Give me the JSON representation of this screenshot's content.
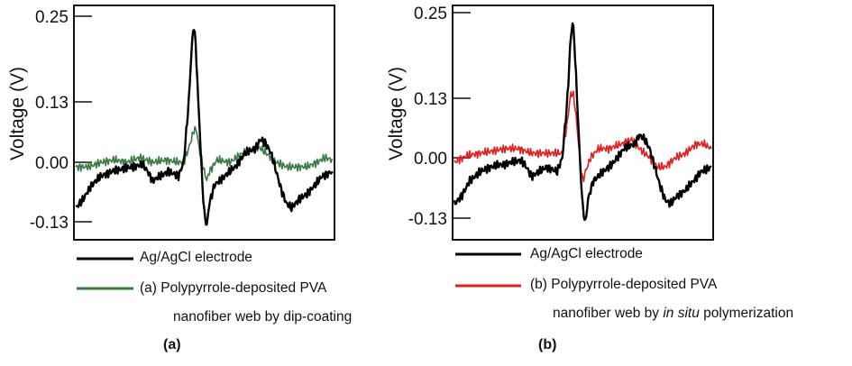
{
  "chart_data": [
    {
      "type": "line",
      "panel_label": "(a)",
      "ylabel": "Voltage (V)",
      "yticks": [
        0.25,
        0.13,
        0.0,
        -0.13
      ],
      "ytick_labels": [
        "0.25",
        "0.13",
        "0.00",
        "-0.13"
      ],
      "xlabel": "",
      "grid": false,
      "legend_position": "bottom",
      "series": [
        {
          "name": "Ag/AgCl electrode",
          "color": "#000000",
          "x": [
            0,
            3,
            6,
            10,
            14,
            18,
            22,
            26,
            28,
            30,
            33,
            36,
            40,
            42,
            44,
            45,
            46,
            47,
            48,
            49,
            50,
            51,
            52,
            54,
            58,
            62,
            66,
            70,
            72,
            74,
            76,
            78,
            80,
            82,
            84,
            87,
            90,
            93,
            96,
            100
          ],
          "y": [
            -0.1,
            -0.08,
            -0.05,
            -0.03,
            -0.02,
            -0.015,
            -0.01,
            -0.005,
            -0.02,
            -0.04,
            -0.03,
            -0.02,
            -0.03,
            0.0,
            0.13,
            0.2,
            0.24,
            0.19,
            0.1,
            -0.02,
            -0.11,
            -0.14,
            -0.09,
            -0.05,
            -0.03,
            -0.01,
            0.02,
            0.03,
            0.05,
            0.04,
            0.02,
            -0.02,
            -0.06,
            -0.09,
            -0.1,
            -0.08,
            -0.07,
            -0.05,
            -0.03,
            -0.02
          ]
        },
        {
          "name": "(a) Polypyrrole-deposited PVA nanofiber web by dip-coating",
          "color": "#3a7a45",
          "x": [
            0,
            5,
            10,
            15,
            20,
            25,
            30,
            35,
            40,
            42,
            44,
            46,
            47,
            48,
            50,
            51,
            52,
            55,
            60,
            65,
            70,
            72,
            74,
            78,
            82,
            86,
            90,
            94,
            97,
            100
          ],
          "y": [
            -0.01,
            -0.01,
            0.0,
            0.005,
            0.0,
            0.01,
            0.0,
            0.005,
            0.0,
            0.0,
            0.03,
            0.07,
            0.07,
            0.03,
            -0.02,
            -0.04,
            -0.02,
            0.005,
            0.0,
            0.02,
            0.03,
            0.03,
            0.02,
            0.0,
            -0.01,
            -0.01,
            -0.01,
            0.0,
            0.01,
            0.005
          ]
        }
      ]
    },
    {
      "type": "line",
      "panel_label": "(b)",
      "ylabel": "Voltage (V)",
      "yticks": [
        0.25,
        0.13,
        0.0,
        -0.13
      ],
      "ytick_labels": [
        "0.25",
        "0.13",
        "0.00",
        "-0.13"
      ],
      "xlabel": "",
      "grid": false,
      "legend_position": "bottom",
      "series": [
        {
          "name": "Ag/AgCl electrode",
          "color": "#000000",
          "x": [
            0,
            3,
            6,
            10,
            14,
            18,
            22,
            26,
            28,
            30,
            33,
            36,
            40,
            42,
            44,
            45,
            46,
            47,
            48,
            49,
            50,
            51,
            52,
            54,
            58,
            62,
            66,
            70,
            72,
            74,
            76,
            78,
            80,
            82,
            84,
            87,
            90,
            93,
            96,
            100
          ],
          "y": [
            -0.1,
            -0.08,
            -0.05,
            -0.03,
            -0.02,
            -0.015,
            -0.01,
            -0.005,
            -0.02,
            -0.04,
            -0.03,
            -0.02,
            -0.03,
            0.0,
            0.13,
            0.2,
            0.24,
            0.19,
            0.1,
            -0.02,
            -0.11,
            -0.14,
            -0.09,
            -0.05,
            -0.03,
            -0.01,
            0.02,
            0.03,
            0.05,
            0.04,
            0.02,
            -0.02,
            -0.06,
            -0.09,
            -0.1,
            -0.08,
            -0.07,
            -0.05,
            -0.03,
            -0.02
          ]
        },
        {
          "name": "(b) Polypyrrole-deposited PVA nanofiber web by in situ polymerization",
          "color": "#e02020",
          "x": [
            0,
            5,
            10,
            15,
            20,
            25,
            30,
            35,
            40,
            42,
            44,
            45,
            46,
            47,
            48,
            49,
            50,
            51,
            53,
            56,
            60,
            65,
            69,
            72,
            76,
            79,
            82,
            86,
            90,
            94,
            97,
            100
          ],
          "y": [
            -0.01,
            0.005,
            0.01,
            0.015,
            0.02,
            0.02,
            0.01,
            0.01,
            0.01,
            0.01,
            0.08,
            0.13,
            0.14,
            0.11,
            0.05,
            -0.01,
            -0.05,
            -0.03,
            0.0,
            0.02,
            0.02,
            0.03,
            0.04,
            0.02,
            0.0,
            -0.02,
            -0.02,
            0.0,
            0.01,
            0.03,
            0.03,
            0.02
          ]
        }
      ]
    }
  ],
  "legend_a": {
    "ref": "Ag/AgCl electrode",
    "line1": "(a) Polypyrrole-deposited PVA",
    "line2": "nanofiber web by dip-coating"
  },
  "legend_b": {
    "ref": "Ag/AgCl electrode",
    "line1": "(b) Polypyrrole-deposited PVA",
    "line2_pre": "nanofiber web by ",
    "line2_italic": "in situ",
    "line2_post": " polymerization"
  },
  "captions": {
    "a": "(a)",
    "b": "(b)"
  }
}
